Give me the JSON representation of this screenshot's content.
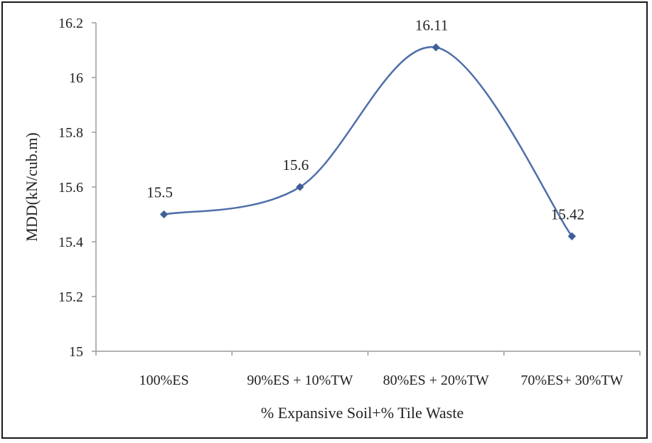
{
  "chart_data": {
    "type": "line",
    "categories": [
      "100%ES",
      "90%ES + 10%TW",
      "80%ES + 20%TW",
      "70%ES+ 30%TW"
    ],
    "values": [
      15.5,
      15.6,
      16.11,
      15.42
    ],
    "data_labels": [
      "15.5",
      "15.6",
      "16.11",
      "15.42"
    ],
    "xlabel": "% Expansive Soil+% Tile Waste",
    "ylabel": "MDD(kN/cub.m)",
    "ylim": [
      15,
      16.2
    ],
    "yticks": [
      "15",
      "15.2",
      "15.4",
      "15.6",
      "15.8",
      "16",
      "16.2"
    ],
    "grid": false,
    "legend": "none",
    "smooth": true,
    "line_color": "#4f6fa8",
    "marker_color": "#3f5f98"
  }
}
